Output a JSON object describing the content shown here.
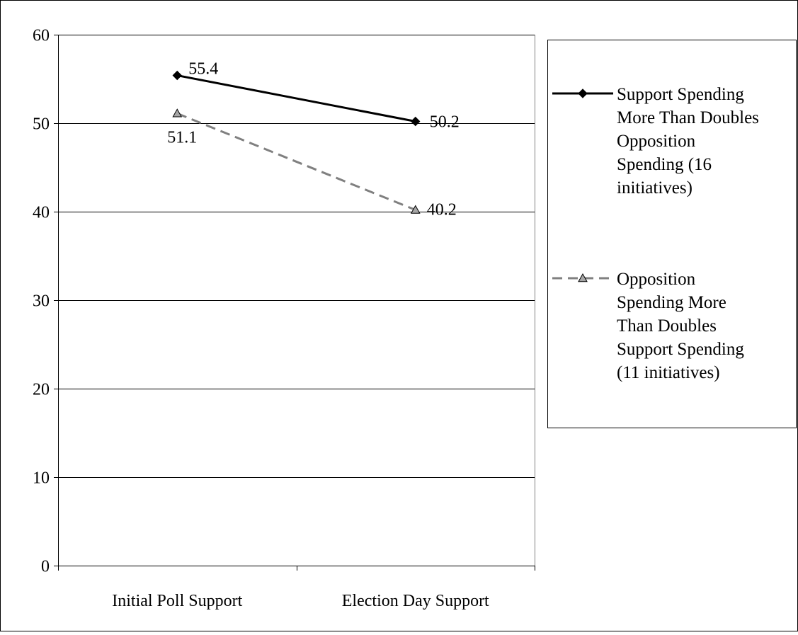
{
  "chart_data": {
    "type": "line",
    "categories": [
      "Initial Poll Support",
      "Election Day Support"
    ],
    "series": [
      {
        "name": "Support Spending More Than Doubles Opposition Spending (16 initiatives)",
        "legend_lines": [
          "Support Spending",
          "More Than Doubles",
          "Opposition",
          "Spending (16",
          "initiatives)"
        ],
        "values": [
          55.4,
          50.2
        ],
        "labels": [
          "55.4",
          "50.2"
        ],
        "color": "#000000",
        "line_style": "solid",
        "marker": "diamond"
      },
      {
        "name": "Opposition Spending More Than Doubles Support Spending (11 initiatives)",
        "legend_lines": [
          "Opposition",
          "Spending More",
          "Than Doubles",
          "Support Spending",
          "(11 initiatives)"
        ],
        "values": [
          51.1,
          40.2
        ],
        "labels": [
          "51.1",
          "40.2"
        ],
        "color": "#808080",
        "marker_fill": "#a6a6a6",
        "line_style": "dashed",
        "marker": "triangle"
      }
    ],
    "y_ticks": [
      "0",
      "10",
      "20",
      "30",
      "40",
      "50",
      "60"
    ],
    "ylim": [
      0,
      60
    ],
    "grid": true,
    "legend_position": "right",
    "title": "",
    "xlabel": "",
    "ylabel": ""
  }
}
